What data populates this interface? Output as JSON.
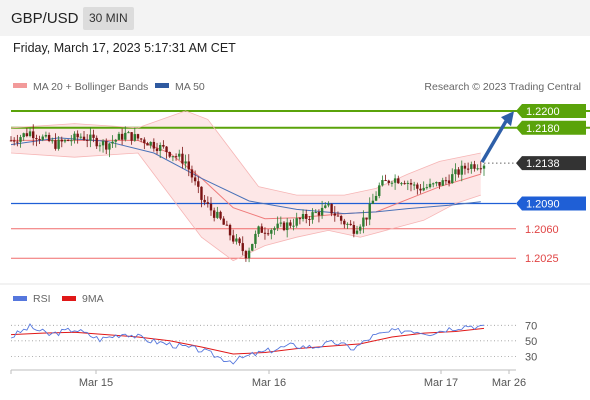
{
  "header": {
    "pair": "GBP/USD",
    "timeframe": "30 MIN"
  },
  "date_label": "Friday, March 17, 2023 5:17:31 AM CET",
  "legend": {
    "ma20": "MA 20 + Bollinger Bands",
    "ma50": "MA 50",
    "credit": "Research © 2023 Trading Central"
  },
  "rsi_legend": {
    "rsi": "RSI",
    "ma9": "9MA"
  },
  "colors": {
    "resistance": "#5aa30a",
    "support": "#1f5fd6",
    "minor": "#f06b6b",
    "price": "#333333",
    "ma50": "#4a72b8",
    "ma20": "#ef7b7b",
    "bands_fill": "#fde3e3",
    "candle_up": "#2e7d32",
    "candle_down": "#7a1313",
    "rsi": "#5577dd",
    "rsi_ma": "#e01818"
  },
  "levels": [
    {
      "price": 1.22,
      "label": "1.2200",
      "kind": "resistance"
    },
    {
      "price": 1.218,
      "label": "1.2180",
      "kind": "resistance"
    },
    {
      "price": 1.2138,
      "label": "1.2138",
      "kind": "price"
    },
    {
      "price": 1.209,
      "label": "1.2090",
      "kind": "support"
    },
    {
      "price": 1.206,
      "label": "1.2060",
      "kind": "minor"
    },
    {
      "price": 1.2025,
      "label": "1.2025",
      "kind": "minor"
    }
  ],
  "chart_data": {
    "type": "line",
    "title": "GBP/USD 30 MIN",
    "y_range": [
      1.2011,
      1.2213
    ],
    "x_ticks": [
      "Mar 15",
      "Mar 16",
      "Mar 17",
      "Mar 26"
    ],
    "price_bars": 150,
    "price_path": [
      [
        0,
        1.2165
      ],
      [
        6,
        1.2175
      ],
      [
        14,
        1.216
      ],
      [
        22,
        1.217
      ],
      [
        30,
        1.216
      ],
      [
        36,
        1.2172
      ],
      [
        42,
        1.2165
      ],
      [
        48,
        1.2155
      ],
      [
        55,
        1.214
      ],
      [
        60,
        1.2095
      ],
      [
        66,
        1.207
      ],
      [
        70,
        1.2048
      ],
      [
        74,
        1.203
      ],
      [
        78,
        1.2058
      ],
      [
        85,
        1.2062
      ],
      [
        92,
        1.2072
      ],
      [
        100,
        1.2085
      ],
      [
        104,
        1.207
      ],
      [
        108,
        1.206
      ],
      [
        112,
        1.2075
      ],
      [
        116,
        1.211
      ],
      [
        120,
        1.212
      ],
      [
        124,
        1.2118
      ],
      [
        128,
        1.2108
      ],
      [
        132,
        1.211
      ],
      [
        136,
        1.2115
      ],
      [
        140,
        1.2125
      ],
      [
        144,
        1.2135
      ],
      [
        149,
        1.2138
      ]
    ],
    "ma50_path": [
      [
        0,
        1.216
      ],
      [
        15,
        1.2168
      ],
      [
        30,
        1.2164
      ],
      [
        45,
        1.215
      ],
      [
        60,
        1.212
      ],
      [
        75,
        1.2093
      ],
      [
        90,
        1.2083
      ],
      [
        105,
        1.2078
      ],
      [
        115,
        1.208
      ],
      [
        125,
        1.2084
      ],
      [
        138,
        1.2088
      ],
      [
        148,
        1.2092
      ]
    ],
    "bollinger_upper_path": [
      [
        0,
        1.218
      ],
      [
        20,
        1.2185
      ],
      [
        40,
        1.218
      ],
      [
        55,
        1.22
      ],
      [
        62,
        1.219
      ],
      [
        70,
        1.215
      ],
      [
        78,
        1.211
      ],
      [
        90,
        1.21
      ],
      [
        105,
        1.21
      ],
      [
        115,
        1.2108
      ],
      [
        125,
        1.2125
      ],
      [
        135,
        1.214
      ],
      [
        148,
        1.215
      ]
    ],
    "bollinger_lower_path": [
      [
        0,
        1.215
      ],
      [
        20,
        1.2145
      ],
      [
        40,
        1.215
      ],
      [
        50,
        1.21
      ],
      [
        60,
        1.205
      ],
      [
        70,
        1.2022
      ],
      [
        80,
        1.204
      ],
      [
        90,
        1.205
      ],
      [
        100,
        1.2058
      ],
      [
        110,
        1.205
      ],
      [
        120,
        1.206
      ],
      [
        130,
        1.207
      ],
      [
        140,
        1.209
      ],
      [
        148,
        1.21
      ]
    ],
    "ma20_path": [
      [
        0,
        1.2165
      ],
      [
        20,
        1.2165
      ],
      [
        40,
        1.2165
      ],
      [
        50,
        1.215
      ],
      [
        60,
        1.212
      ],
      [
        70,
        1.2085
      ],
      [
        80,
        1.2072
      ],
      [
        90,
        1.2073
      ],
      [
        105,
        1.2078
      ],
      [
        115,
        1.208
      ],
      [
        125,
        1.2095
      ],
      [
        135,
        1.211
      ],
      [
        148,
        1.2125
      ]
    ],
    "projection": {
      "from": 1.2138,
      "to": 1.2195
    },
    "rsi": {
      "levels": [
        70,
        50,
        30
      ],
      "y_range": [
        15,
        82
      ],
      "rsi_path": [
        [
          0,
          55
        ],
        [
          6,
          68
        ],
        [
          12,
          58
        ],
        [
          20,
          65
        ],
        [
          28,
          52
        ],
        [
          36,
          60
        ],
        [
          44,
          50
        ],
        [
          52,
          44
        ],
        [
          60,
          38
        ],
        [
          66,
          28
        ],
        [
          70,
          24
        ],
        [
          76,
          32
        ],
        [
          82,
          38
        ],
        [
          88,
          44
        ],
        [
          95,
          42
        ],
        [
          102,
          48
        ],
        [
          108,
          40
        ],
        [
          114,
          56
        ],
        [
          120,
          62
        ],
        [
          126,
          64
        ],
        [
          132,
          60
        ],
        [
          138,
          66
        ],
        [
          144,
          70
        ],
        [
          149,
          67
        ]
      ],
      "ma_path": [
        [
          0,
          58
        ],
        [
          10,
          60
        ],
        [
          20,
          61
        ],
        [
          30,
          58
        ],
        [
          40,
          55
        ],
        [
          50,
          50
        ],
        [
          60,
          42
        ],
        [
          70,
          33
        ],
        [
          80,
          35
        ],
        [
          90,
          40
        ],
        [
          100,
          43
        ],
        [
          110,
          46
        ],
        [
          120,
          55
        ],
        [
          130,
          60
        ],
        [
          140,
          62
        ],
        [
          149,
          66
        ]
      ]
    }
  }
}
